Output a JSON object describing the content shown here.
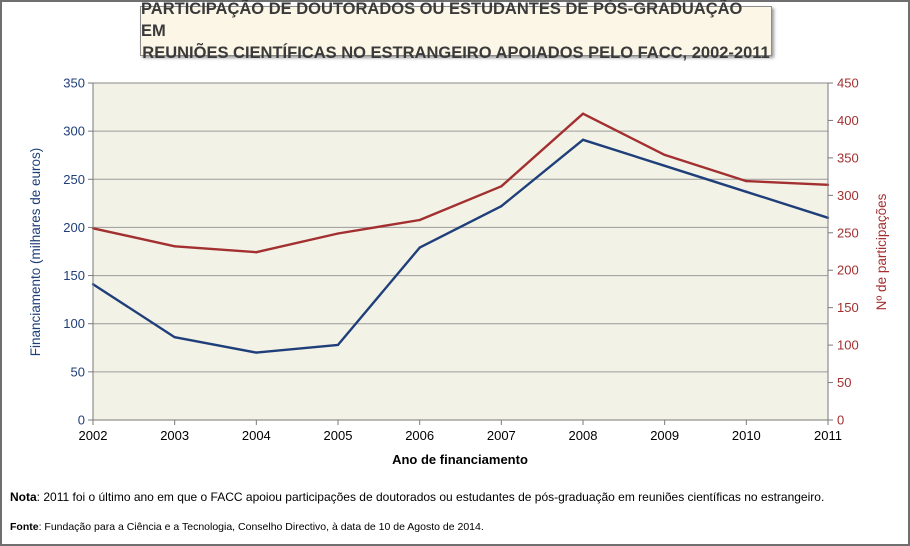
{
  "chart_data": {
    "type": "line",
    "title": [
      "PARTICIPAÇÃO DE DOUTORADOS OU ESTUDANTES DE PÓS-GRADUAÇÃO EM",
      "REUNIÕES CIENTÍFICAS NO ESTRANGEIRO APOIADOS PELO FACC, 2002-2011"
    ],
    "xlabel": "Ano de financiamento",
    "ylabel_left": "Financiamento (milhares de euros)",
    "ylabel_right": "Nº de participações",
    "x": [
      "2002",
      "2003",
      "2004",
      "2005",
      "2006",
      "2007",
      "2008",
      "2009",
      "2010",
      "2011"
    ],
    "y_left_ticks": [
      "0",
      "50",
      "100",
      "150",
      "200",
      "250",
      "300",
      "350"
    ],
    "y_right_ticks": [
      "0",
      "50",
      "100",
      "150",
      "200",
      "250",
      "300",
      "350",
      "400",
      "450"
    ],
    "ylim_left": [
      0,
      350
    ],
    "ylim_right": [
      0,
      450
    ],
    "grid": true,
    "series": [
      {
        "axis": "left",
        "color": "#1f3f7a",
        "values": [
          141,
          86,
          70,
          78,
          179,
          222,
          291,
          264,
          237,
          210
        ]
      },
      {
        "axis": "right",
        "color": "#a33030",
        "values": [
          256,
          232,
          224,
          249,
          267,
          312,
          409,
          354,
          319,
          314
        ]
      }
    ]
  },
  "note": {
    "label": "Nota",
    "text": ": 2011 foi o último ano em que o FACC apoiou participações de doutorados ou estudantes de pós-graduação em reuniões científicas no estrangeiro."
  },
  "source": {
    "label": "Fonte",
    "text": ": Fundação para a Ciência e a Tecnologia, Conselho Directivo, à data de 10 de Agosto de 2014."
  }
}
